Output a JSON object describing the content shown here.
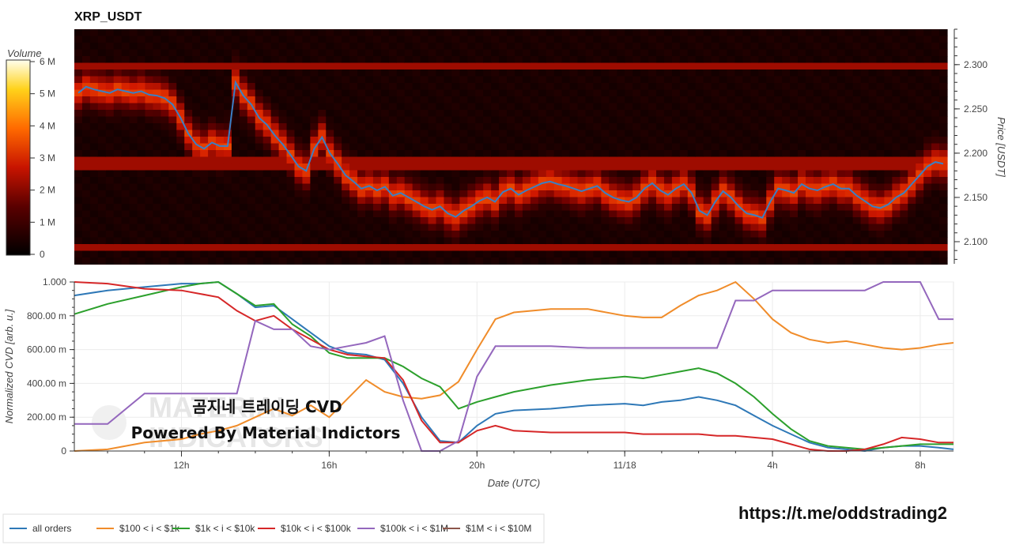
{
  "title": "XRP_USDT",
  "watermark": {
    "line1": "곰지네 트레이딩 CVD",
    "line2": "Powered By Material Indictors",
    "ghost1": "MATERIAL",
    "ghost2": "INDICATORS"
  },
  "link_text": "https://t.me/oddstrading2",
  "colors": {
    "price_line": "#3b7fc4",
    "bg": "#ffffff"
  },
  "colorbar": {
    "label": "Volume",
    "ticks": [
      "6 M",
      "5 M",
      "4 M",
      "3 M",
      "2 M",
      "1 M",
      "0"
    ]
  },
  "chart_data": [
    {
      "type": "heatmap",
      "title": "XRP_USDT",
      "ylabel": "Price [USDT]",
      "ylim": [
        2.075,
        2.34
      ],
      "yticks": [
        "2.300",
        "2.250",
        "2.200",
        "2.150",
        "2.100"
      ],
      "ytick_values": [
        2.3,
        2.25,
        2.2,
        2.15,
        2.1
      ],
      "price_series": [
        2.268,
        2.275,
        2.272,
        2.27,
        2.268,
        2.272,
        2.27,
        2.268,
        2.27,
        2.266,
        2.265,
        2.262,
        2.255,
        2.24,
        2.222,
        2.21,
        2.205,
        2.212,
        2.208,
        2.208,
        2.28,
        2.265,
        2.255,
        2.24,
        2.232,
        2.22,
        2.21,
        2.198,
        2.185,
        2.18,
        2.205,
        2.218,
        2.2,
        2.188,
        2.175,
        2.168,
        2.16,
        2.163,
        2.158,
        2.162,
        2.152,
        2.155,
        2.15,
        2.145,
        2.14,
        2.136,
        2.14,
        2.132,
        2.128,
        2.135,
        2.14,
        2.146,
        2.15,
        2.145,
        2.156,
        2.16,
        2.153,
        2.158,
        2.162,
        2.166,
        2.168,
        2.165,
        2.163,
        2.16,
        2.157,
        2.16,
        2.163,
        2.155,
        2.15,
        2.147,
        2.145,
        2.15,
        2.16,
        2.166,
        2.158,
        2.153,
        2.16,
        2.165,
        2.155,
        2.135,
        2.13,
        2.145,
        2.157,
        2.15,
        2.14,
        2.132,
        2.13,
        2.127,
        2.145,
        2.16,
        2.158,
        2.155,
        2.165,
        2.16,
        2.158,
        2.162,
        2.165,
        2.16,
        2.16,
        2.152,
        2.146,
        2.14,
        2.138,
        2.142,
        2.15,
        2.155,
        2.165,
        2.175,
        2.185,
        2.19,
        2.188
      ],
      "x_range_hours": [
        9.1,
        9.05
      ]
    },
    {
      "type": "line",
      "ylabel": "Normalized CVD [arb. u.]",
      "xlabel": "Date (UTC)",
      "ylim": [
        0,
        1
      ],
      "yticks": [
        "1.000",
        "800.00 m",
        "600.00 m",
        "400.00 m",
        "200.00 m",
        "0"
      ],
      "ytick_values": [
        1.0,
        0.8,
        0.6,
        0.4,
        0.2,
        0
      ],
      "xticks": [
        "12h",
        "16h",
        "20h",
        "11/18",
        "4h",
        "8h"
      ],
      "xtick_hours": [
        12,
        16,
        20,
        24,
        28,
        32
      ],
      "x_start_hour": 9.1,
      "x_end_hour": 32.9,
      "x_hours": [
        9.1,
        10,
        11,
        12,
        12.5,
        13,
        13.5,
        14,
        14.5,
        15,
        15.5,
        16,
        16.5,
        17,
        17.5,
        18,
        18.5,
        19,
        19.5,
        20,
        20.5,
        21,
        22,
        23,
        24,
        24.5,
        25,
        25.5,
        26,
        26.5,
        27,
        27.5,
        28,
        28.5,
        29,
        29.5,
        30,
        30.5,
        31,
        31.5,
        32,
        32.5,
        32.9
      ],
      "series": [
        {
          "name": "all orders",
          "color": "#2e78b7",
          "values": [
            0.92,
            0.95,
            0.97,
            0.99,
            0.99,
            1.0,
            0.93,
            0.85,
            0.86,
            0.78,
            0.7,
            0.62,
            0.58,
            0.57,
            0.54,
            0.4,
            0.2,
            0.06,
            0.05,
            0.15,
            0.22,
            0.24,
            0.25,
            0.27,
            0.28,
            0.27,
            0.29,
            0.3,
            0.32,
            0.3,
            0.27,
            0.21,
            0.15,
            0.1,
            0.05,
            0.02,
            0.01,
            0.0,
            0.02,
            0.03,
            0.03,
            0.02,
            0.01
          ]
        },
        {
          "name": "$100 < i < $1k",
          "color": "#f08c2a",
          "values": [
            0.0,
            0.01,
            0.05,
            0.07,
            0.1,
            0.12,
            0.15,
            0.2,
            0.25,
            0.21,
            0.27,
            0.2,
            0.31,
            0.42,
            0.35,
            0.32,
            0.31,
            0.33,
            0.41,
            0.6,
            0.78,
            0.82,
            0.84,
            0.84,
            0.8,
            0.79,
            0.79,
            0.86,
            0.92,
            0.95,
            1.0,
            0.9,
            0.78,
            0.7,
            0.66,
            0.64,
            0.65,
            0.63,
            0.61,
            0.6,
            0.61,
            0.63,
            0.64
          ]
        },
        {
          "name": "$1k < i < $10k",
          "color": "#2ca02c",
          "values": [
            0.81,
            0.87,
            0.92,
            0.97,
            0.99,
            1.0,
            0.93,
            0.86,
            0.87,
            0.75,
            0.68,
            0.58,
            0.55,
            0.55,
            0.55,
            0.5,
            0.43,
            0.38,
            0.25,
            0.29,
            0.32,
            0.35,
            0.39,
            0.42,
            0.44,
            0.43,
            0.45,
            0.47,
            0.49,
            0.46,
            0.4,
            0.32,
            0.22,
            0.13,
            0.06,
            0.03,
            0.02,
            0.01,
            0.02,
            0.03,
            0.04,
            0.04,
            0.04
          ]
        },
        {
          "name": "$10k < i < $100k",
          "color": "#d62728",
          "values": [
            1.0,
            0.99,
            0.96,
            0.95,
            0.93,
            0.91,
            0.83,
            0.77,
            0.8,
            0.72,
            0.66,
            0.6,
            0.57,
            0.56,
            0.55,
            0.42,
            0.18,
            0.05,
            0.05,
            0.12,
            0.15,
            0.12,
            0.11,
            0.11,
            0.11,
            0.1,
            0.1,
            0.1,
            0.1,
            0.09,
            0.09,
            0.08,
            0.07,
            0.04,
            0.01,
            0.0,
            0.0,
            0.01,
            0.04,
            0.08,
            0.07,
            0.05,
            0.05
          ]
        },
        {
          "name": "$100k < i < $1M",
          "color": "#9467bd",
          "values": [
            0.16,
            0.16,
            0.34,
            0.34,
            0.34,
            0.34,
            0.34,
            0.77,
            0.72,
            0.72,
            0.62,
            0.6,
            0.62,
            0.64,
            0.68,
            0.3,
            0.0,
            0.0,
            0.06,
            0.44,
            0.62,
            0.62,
            0.62,
            0.61,
            0.61,
            0.61,
            0.61,
            0.61,
            0.61,
            0.61,
            0.89,
            0.89,
            0.95,
            0.95,
            0.95,
            0.95,
            0.95,
            0.95,
            1.0,
            1.0,
            1.0,
            0.78,
            0.78
          ]
        },
        {
          "name": "$1M < i < $10M",
          "color": "#8c564b",
          "values": []
        }
      ]
    }
  ]
}
